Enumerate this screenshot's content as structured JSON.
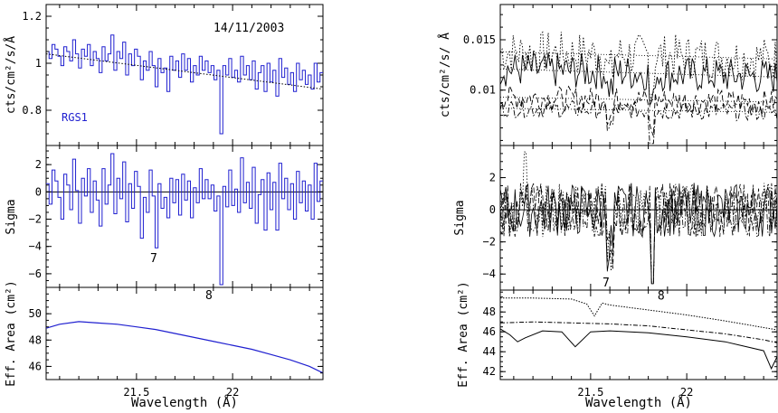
{
  "chart_data": [
    {
      "type": "line",
      "panel": "left-top",
      "style": "step",
      "date_label": "14/11/2003",
      "instrument_label": "RGS1",
      "ylabel": "cts/cm²/s/Å",
      "xlim": [
        21.03,
        22.47
      ],
      "ylim": [
        0.65,
        1.25
      ],
      "yticks": [
        0.8,
        1,
        1.2
      ],
      "ytick_labels": [
        "0.8",
        "1",
        "1.2"
      ],
      "colors": {
        "data": "#2020d0",
        "model": "#000000"
      },
      "series": [
        {
          "values": [
            1.05,
            1.02,
            1.08,
            1.06,
            1.03,
            0.99,
            1.07,
            1.05,
            1.01,
            1.1,
            1.04,
            0.98,
            1.06,
            1.03,
            1.08,
            0.99,
            1.05,
            1.02,
            0.96,
            1.07,
            1.01,
            1.04,
            1.12,
            0.97,
            1.05,
            1.02,
            1.09,
            0.95,
            1.04,
            0.99,
            1.06,
            1.03,
            0.93,
            1.01,
            0.97,
            1.05,
            0.99,
            0.9,
            1.02,
            0.96,
            0.98,
            0.88,
            1.03,
            0.97,
            1.01,
            0.94,
            1.04,
            0.97,
            1.02,
            0.92,
            0.99,
            0.95,
            1.03,
            0.97,
            1.01,
            0.96,
            0.99,
            0.93,
            0.97,
            0.7,
            0.99,
            0.95,
            1.02,
            0.94,
            0.97,
            0.92,
            1.03,
            0.95,
            0.99,
            0.93,
            1.01,
            0.89,
            0.96,
            0.99,
            0.88,
            1.0,
            0.92,
            0.97,
            0.86,
            1.02,
            0.94,
            0.98,
            0.91,
            0.96,
            0.88,
            1.0,
            0.93,
            0.97,
            0.91,
            0.95,
            0.89,
            1.0,
            0.92,
            0.96
          ]
        },
        {
          "name_hidden": true,
          "x": [
            21.03,
            22.47
          ],
          "values": [
            1.04,
            0.89
          ]
        }
      ]
    },
    {
      "type": "line",
      "panel": "left-middle",
      "style": "step",
      "ylabel": "Sigma",
      "xlim": [
        21.03,
        22.47
      ],
      "ylim": [
        -7,
        3.4
      ],
      "yticks": [
        -6,
        -4,
        -2,
        0,
        2
      ],
      "ytick_labels": [
        "−6",
        "−4",
        "−2",
        "0",
        "2"
      ],
      "annotations": [
        {
          "text": "7",
          "x": 21.59,
          "y": -4.1
        },
        {
          "text": "8",
          "x": 21.83,
          "y": -6.8
        }
      ],
      "values": [
        0.6,
        -0.9,
        1.6,
        0.8,
        -0.4,
        -2.0,
        1.3,
        0.5,
        -1.3,
        2.4,
        0.1,
        -2.3,
        1.0,
        -0.3,
        1.7,
        -1.5,
        0.8,
        -0.6,
        -2.5,
        1.7,
        -0.9,
        0.5,
        2.8,
        -1.6,
        1.0,
        -0.5,
        2.2,
        -2.2,
        0.6,
        -1.2,
        1.5,
        0.4,
        -3.4,
        -0.4,
        -1.5,
        1.6,
        -0.3,
        -4.1,
        0.6,
        -1.2,
        -0.4,
        -1.9,
        1.0,
        -0.8,
        0.9,
        -1.7,
        1.3,
        -0.6,
        0.8,
        -1.9,
        0.3,
        -0.8,
        1.7,
        -0.5,
        0.9,
        -0.5,
        0.5,
        -1.4,
        -0.3,
        -6.8,
        0.4,
        -1.1,
        1.6,
        -1.0,
        0.2,
        -1.5,
        2.5,
        -0.8,
        0.7,
        -1.2,
        1.8,
        -2.3,
        -0.2,
        0.9,
        -2.8,
        1.4,
        -1.3,
        0.7,
        -2.8,
        2.1,
        -0.5,
        1.0,
        -1.3,
        0.6,
        -2.0,
        1.5,
        -0.8,
        0.8,
        -1.4,
        0.5,
        -2.0,
        2.1,
        -0.7,
        0.8
      ]
    },
    {
      "type": "line",
      "panel": "left-bottom",
      "ylabel": "Eff. Area (cm²)",
      "xlabel": "Wavelength (Å)",
      "xlim": [
        21.03,
        22.47
      ],
      "ylim": [
        45,
        52
      ],
      "yticks": [
        46,
        48,
        50
      ],
      "ytick_labels": [
        "46",
        "48",
        "50"
      ],
      "xticks": [
        21.5,
        22
      ],
      "xtick_labels": [
        "21.5",
        "22"
      ],
      "x": [
        21.03,
        21.1,
        21.2,
        21.3,
        21.4,
        21.5,
        21.6,
        21.7,
        21.8,
        21.9,
        22.0,
        22.1,
        22.2,
        22.3,
        22.4,
        22.47
      ],
      "values": [
        48.9,
        49.2,
        49.4,
        49.3,
        49.2,
        49.0,
        48.8,
        48.5,
        48.2,
        47.9,
        47.6,
        47.3,
        46.9,
        46.5,
        46.0,
        45.5
      ],
      "color": "#2020d0"
    },
    {
      "type": "line",
      "panel": "right-top",
      "ylabel": "cts/cm²/s/ Å",
      "xlim": [
        21.03,
        22.47
      ],
      "ylim": [
        0.0045,
        0.0185
      ],
      "yticks": [
        0.01,
        0.015
      ],
      "ytick_labels": [
        "0.01",
        "0.015"
      ],
      "series": [
        {
          "style": "dotted",
          "level": 0.0138,
          "end": 0.0131
        },
        {
          "style": "solid",
          "level": 0.0121,
          "end": 0.0113
        },
        {
          "style": "dashed",
          "level": 0.0093,
          "end": 0.0088
        },
        {
          "style": "dash-dot",
          "level": 0.0082,
          "end": 0.0078
        }
      ]
    },
    {
      "type": "line",
      "panel": "right-middle",
      "ylabel": "Sigma",
      "xlim": [
        21.03,
        22.47
      ],
      "ylim": [
        -5,
        4
      ],
      "yticks": [
        -4,
        -2,
        0,
        2
      ],
      "ytick_labels": [
        "−4",
        "−2",
        "0",
        "2"
      ],
      "annotations": [
        {
          "text": "7",
          "x": 21.59,
          "y": -4.0
        },
        {
          "text": "8",
          "x": 21.82,
          "y": -4.8
        }
      ]
    },
    {
      "type": "line",
      "panel": "right-bottom",
      "ylabel": "Eff. Area (cm²)",
      "xlabel": "Wavelength (Å)",
      "xlim": [
        21.03,
        22.47
      ],
      "ylim": [
        41.2,
        50.2
      ],
      "yticks": [
        42,
        44,
        46,
        48
      ],
      "ytick_labels": [
        "42",
        "44",
        "46",
        "48"
      ],
      "xticks": [
        21.5,
        22
      ],
      "xtick_labels": [
        "21.5",
        "22"
      ],
      "series": [
        {
          "style": "dotted",
          "x": [
            21.03,
            21.2,
            21.4,
            21.48,
            21.52,
            21.56,
            21.6,
            21.8,
            22.0,
            22.2,
            22.47
          ],
          "values": [
            49.4,
            49.4,
            49.3,
            48.8,
            47.6,
            48.9,
            48.7,
            48.2,
            47.7,
            47.1,
            46.2
          ]
        },
        {
          "style": "dash-dot",
          "x": [
            21.03,
            21.2,
            21.4,
            21.6,
            21.8,
            22.0,
            22.2,
            22.4,
            22.47
          ],
          "values": [
            46.9,
            47.0,
            46.9,
            46.8,
            46.6,
            46.2,
            45.8,
            45.2,
            44.9
          ]
        },
        {
          "style": "solid",
          "x": [
            21.03,
            21.08,
            21.12,
            21.16,
            21.25,
            21.35,
            21.42,
            21.5,
            21.6,
            21.8,
            22.0,
            22.2,
            22.4,
            22.44,
            22.47
          ],
          "values": [
            46.3,
            45.7,
            45.0,
            45.4,
            46.1,
            46.0,
            44.5,
            46.0,
            46.1,
            45.9,
            45.5,
            45.0,
            44.1,
            42.3,
            43.5
          ]
        }
      ]
    }
  ]
}
